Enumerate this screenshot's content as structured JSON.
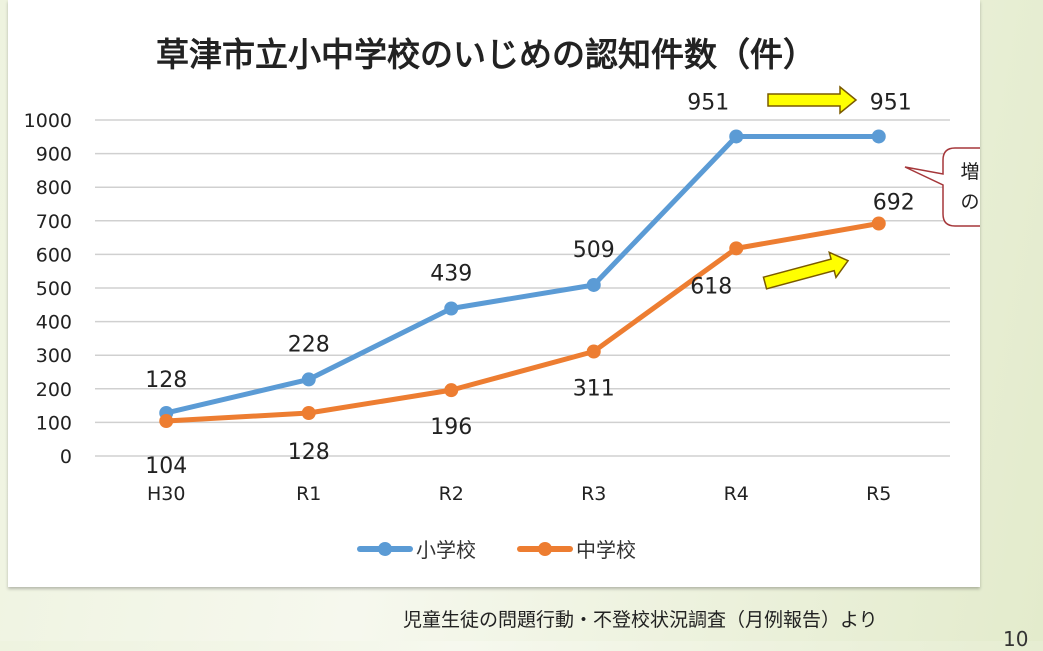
{
  "chart_data": {
    "type": "line",
    "title": "草津市立小中学校のいじめの認知件数（件）",
    "categories": [
      "H30",
      "R1",
      "R2",
      "R3",
      "R4",
      "R5"
    ],
    "series": [
      {
        "name": "小学校",
        "color": "#5b9bd5",
        "values": [
          128,
          228,
          439,
          509,
          951,
          951
        ]
      },
      {
        "name": "中学校",
        "color": "#ed7d31",
        "values": [
          104,
          128,
          196,
          311,
          618,
          692
        ]
      }
    ],
    "ylim": [
      0,
      1000
    ],
    "yticks": [
      0,
      100,
      200,
      300,
      400,
      500,
      600,
      700,
      800,
      900,
      1000
    ],
    "grid": true,
    "legend": "bottom",
    "annotations": {
      "callout": [
        "増加数",
        "の鈍化"
      ]
    }
  },
  "footer": {
    "source": "児童生徒の問題行動・不登校状況調査（月例報告）より",
    "page": "10"
  }
}
